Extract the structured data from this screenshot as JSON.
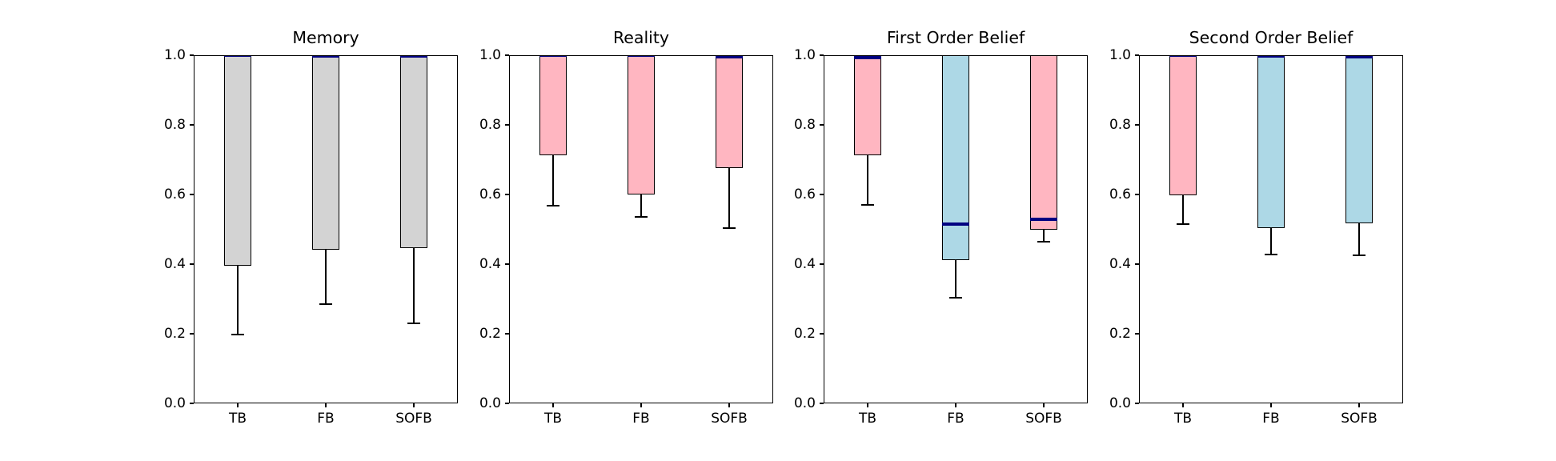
{
  "figure": {
    "background": "#ffffff",
    "colors": {
      "box_gray": "#d3d3d3",
      "box_pink": "#ffb6c1",
      "box_blue": "#add8e6",
      "median": "#000080",
      "edge": "#000000"
    }
  },
  "chart_data": [
    {
      "type": "boxplot",
      "title": "Memory",
      "categories": [
        "TB",
        "FB",
        "SOFB"
      ],
      "ylim": [
        0.0,
        1.0
      ],
      "yticks": [
        "0.0",
        "0.2",
        "0.4",
        "0.6",
        "0.8",
        "1.0"
      ],
      "grid": false,
      "legend": null,
      "boxes": [
        {
          "category": "TB",
          "q1": 0.395,
          "q3": 1.0,
          "median": 1.0,
          "whisker_low": 0.197,
          "color": "#d3d3d3"
        },
        {
          "category": "FB",
          "q1": 0.441,
          "q3": 1.0,
          "median": 0.998,
          "whisker_low": 0.285,
          "color": "#d3d3d3"
        },
        {
          "category": "SOFB",
          "q1": 0.447,
          "q3": 1.0,
          "median": 0.998,
          "whisker_low": 0.229,
          "color": "#d3d3d3"
        }
      ]
    },
    {
      "type": "boxplot",
      "title": "Reality",
      "categories": [
        "TB",
        "FB",
        "SOFB"
      ],
      "ylim": [
        0.0,
        1.0
      ],
      "yticks": [
        "0.0",
        "0.2",
        "0.4",
        "0.6",
        "0.8",
        "1.0"
      ],
      "grid": false,
      "legend": null,
      "boxes": [
        {
          "category": "TB",
          "q1": 0.712,
          "q3": 1.0,
          "median": 1.0,
          "whisker_low": 0.568,
          "color": "#ffb6c1"
        },
        {
          "category": "FB",
          "q1": 0.601,
          "q3": 1.0,
          "median": 1.0,
          "whisker_low": 0.535,
          "color": "#ffb6c1"
        },
        {
          "category": "SOFB",
          "q1": 0.677,
          "q3": 1.0,
          "median": 0.995,
          "whisker_low": 0.504,
          "color": "#ffb6c1"
        }
      ]
    },
    {
      "type": "boxplot",
      "title": "First Order Belief",
      "categories": [
        "TB",
        "FB",
        "SOFB"
      ],
      "ylim": [
        0.0,
        1.0
      ],
      "yticks": [
        "0.0",
        "0.2",
        "0.4",
        "0.6",
        "0.8",
        "1.0"
      ],
      "grid": false,
      "legend": null,
      "boxes": [
        {
          "category": "TB",
          "q1": 0.712,
          "q3": 1.0,
          "median": 0.993,
          "whisker_low": 0.571,
          "color": "#ffb6c1"
        },
        {
          "category": "FB",
          "q1": 0.411,
          "q3": 1.0,
          "median": 0.515,
          "whisker_low": 0.304,
          "color": "#add8e6"
        },
        {
          "category": "SOFB",
          "q1": 0.499,
          "q3": 1.0,
          "median": 0.529,
          "whisker_low": 0.464,
          "color": "#ffb6c1"
        }
      ]
    },
    {
      "type": "boxplot",
      "title": "Second Order Belief",
      "categories": [
        "TB",
        "FB",
        "SOFB"
      ],
      "ylim": [
        0.0,
        1.0
      ],
      "yticks": [
        "0.0",
        "0.2",
        "0.4",
        "0.6",
        "0.8",
        "1.0"
      ],
      "grid": false,
      "legend": null,
      "boxes": [
        {
          "category": "TB",
          "q1": 0.597,
          "q3": 1.0,
          "median": 1.0,
          "whisker_low": 0.514,
          "color": "#ffb6c1"
        },
        {
          "category": "FB",
          "q1": 0.503,
          "q3": 1.0,
          "median": 0.998,
          "whisker_low": 0.428,
          "color": "#add8e6"
        },
        {
          "category": "SOFB",
          "q1": 0.517,
          "q3": 1.0,
          "median": 0.995,
          "whisker_low": 0.425,
          "color": "#add8e6"
        }
      ]
    }
  ]
}
